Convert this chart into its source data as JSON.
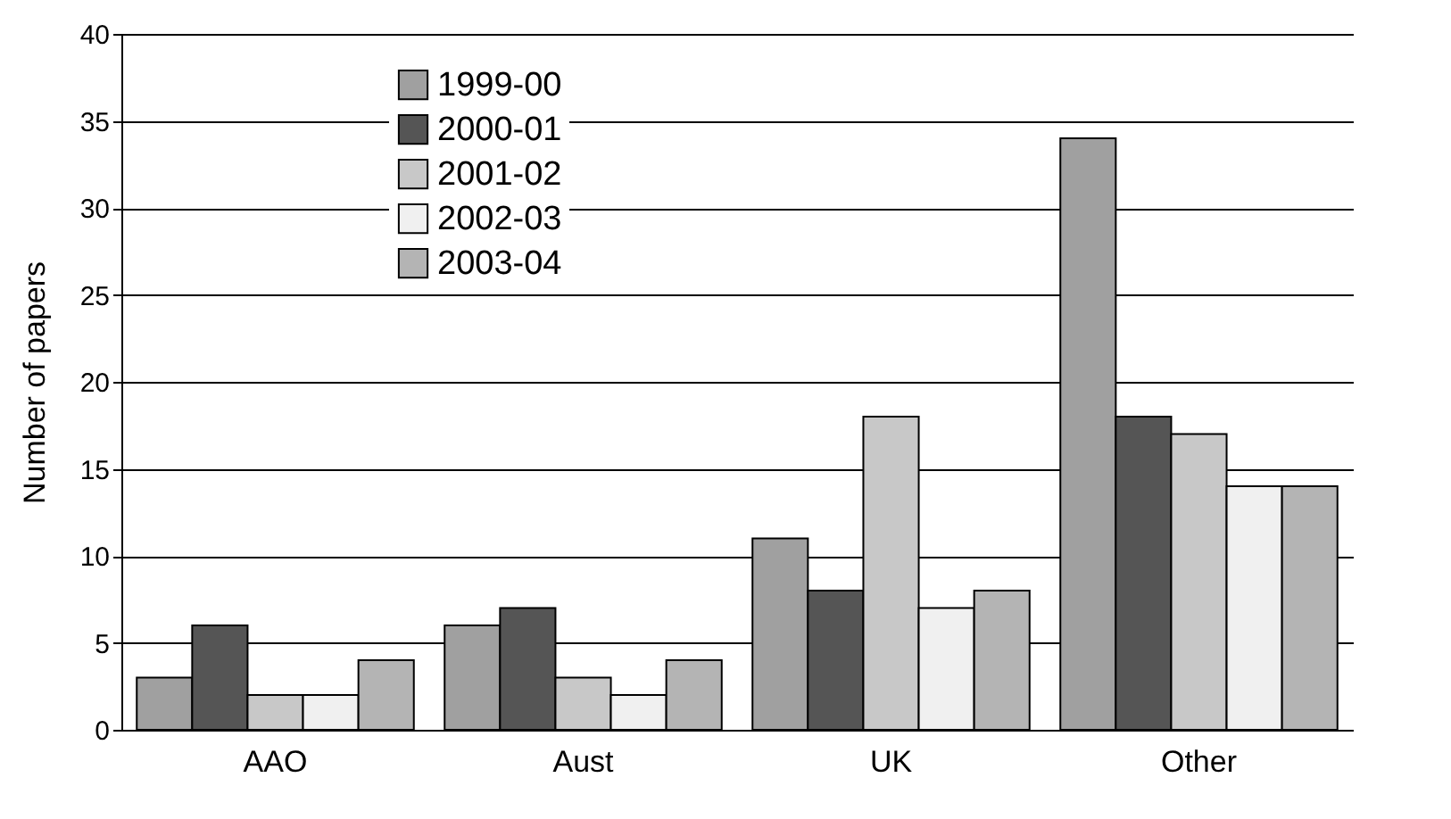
{
  "chart_data": {
    "type": "bar",
    "ylabel": "Number of papers",
    "categories": [
      "AAO",
      "Aust",
      "UK",
      "Other"
    ],
    "series": [
      {
        "name": "1999-00",
        "color": "#a0a0a0",
        "values": [
          3,
          6,
          11,
          34
        ]
      },
      {
        "name": "2000-01",
        "color": "#555555",
        "values": [
          6,
          7,
          8,
          18
        ]
      },
      {
        "name": "2001-02",
        "color": "#c8c8c8",
        "values": [
          2,
          3,
          18,
          17
        ]
      },
      {
        "name": "2002-03",
        "color": "#f0f0f0",
        "values": [
          2,
          2,
          7,
          14
        ]
      },
      {
        "name": "2003-04",
        "color": "#b4b4b4",
        "values": [
          4,
          4,
          8,
          14
        ]
      }
    ],
    "ylim": [
      0,
      40
    ],
    "yticks": [
      0,
      5,
      10,
      15,
      20,
      25,
      30,
      35,
      40
    ],
    "grid": "y",
    "legend": "top left"
  }
}
